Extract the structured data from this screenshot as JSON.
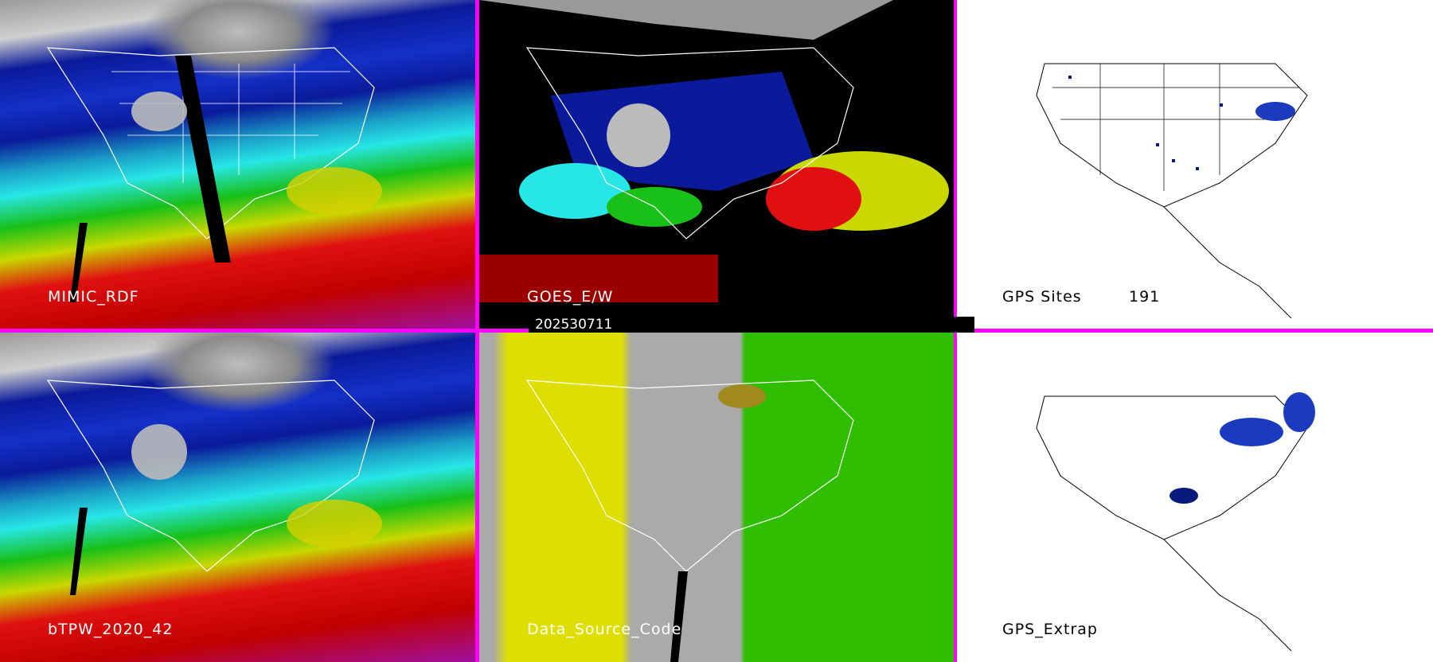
{
  "panels": [
    {
      "label": "MIMIC_RDF"
    },
    {
      "label": "GOES_E/W"
    },
    {
      "label": "GPS Sites",
      "count": "191"
    },
    {
      "label": "bTPW_2020_42"
    },
    {
      "label": "Data_Source_Code"
    },
    {
      "label": "GPS_Extrap"
    }
  ],
  "date_stamp": "202530711",
  "colors": {
    "divider": "#ff00ff",
    "moist": "#e01010",
    "dry": "#0a1a9a",
    "mid": "#27e6e6",
    "green": "#18c018",
    "yellow": "#dede00",
    "gray": "#aaaaaa"
  }
}
